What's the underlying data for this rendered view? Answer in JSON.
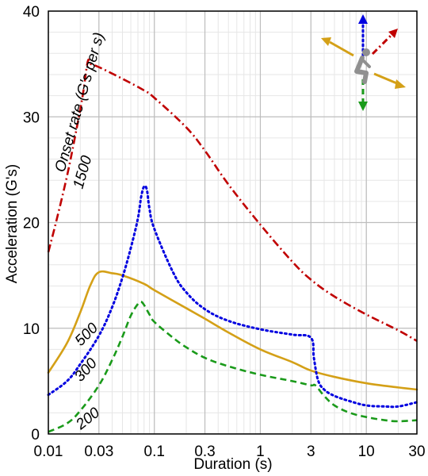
{
  "chart_data": {
    "type": "line",
    "title": "",
    "xlabel": "Duration (s)",
    "ylabel": "Acceleration (G's)",
    "xscale": "log",
    "xlim": [
      0.01,
      30
    ],
    "ylim": [
      0,
      40
    ],
    "x_ticks": [
      0.01,
      0.03,
      0.1,
      0.3,
      1,
      3,
      10,
      30
    ],
    "x_tick_labels": [
      "0.01",
      "0.03",
      "0.1",
      "0.3",
      "1",
      "3",
      "10",
      "30"
    ],
    "y_ticks": [
      0,
      10,
      20,
      30,
      40
    ],
    "y_tick_labels": [
      "0",
      "10",
      "20",
      "30",
      "40"
    ],
    "grid": true,
    "series_label_header": "Onset rate (G's per s)",
    "series": [
      {
        "name": "1500",
        "color": "#c00000",
        "style": "dash-dot",
        "x": [
          0.01,
          0.012,
          0.015,
          0.018,
          0.021,
          0.0235,
          0.025,
          0.03,
          0.05,
          0.08,
          0.1,
          0.2,
          0.3,
          0.5,
          1,
          2,
          3,
          5,
          10,
          20,
          30
        ],
        "y": [
          17.2,
          20.3,
          24.4,
          28.3,
          31.9,
          35.2,
          35.0,
          34.7,
          33.6,
          32.5,
          31.8,
          29.0,
          26.8,
          23.6,
          19.8,
          16.3,
          14.6,
          13.0,
          11.3,
          9.8,
          8.8
        ]
      },
      {
        "name": "500",
        "color": "#d4a017",
        "style": "solid",
        "x": [
          0.01,
          0.015,
          0.02,
          0.025,
          0.03,
          0.04,
          0.05,
          0.08,
          0.1,
          0.2,
          0.3,
          0.5,
          1,
          2,
          3,
          5,
          10,
          20,
          30
        ],
        "y": [
          5.8,
          8.6,
          11.5,
          14.1,
          15.3,
          15.2,
          15.0,
          14.2,
          13.6,
          11.9,
          10.9,
          9.6,
          8.0,
          6.8,
          6.0,
          5.4,
          4.8,
          4.4,
          4.2
        ]
      },
      {
        "name": "300",
        "color": "#0000e0",
        "style": "dotted",
        "x": [
          0.01,
          0.015,
          0.02,
          0.03,
          0.04,
          0.05,
          0.06,
          0.07,
          0.075,
          0.08,
          0.085,
          0.09,
          0.1,
          0.15,
          0.2,
          0.3,
          0.5,
          1,
          2,
          3,
          3.2,
          3.5,
          4,
          5,
          7,
          10,
          15,
          20,
          30
        ],
        "y": [
          3.7,
          5.0,
          6.6,
          9.3,
          12.0,
          14.8,
          17.6,
          20.4,
          22.4,
          23.4,
          23.1,
          21.3,
          19.4,
          15.3,
          13.4,
          11.8,
          10.7,
          9.9,
          9.4,
          9.1,
          7.2,
          5.1,
          4.2,
          3.6,
          3.1,
          2.7,
          2.6,
          2.6,
          3.0
        ]
      },
      {
        "name": "200",
        "color": "#1a9a1a",
        "style": "dashed",
        "x": [
          0.01,
          0.015,
          0.02,
          0.03,
          0.04,
          0.05,
          0.06,
          0.07,
          0.075,
          0.08,
          0.09,
          0.1,
          0.15,
          0.2,
          0.3,
          0.5,
          1,
          2,
          3,
          3.3,
          4,
          5,
          7,
          10,
          15,
          20,
          30
        ],
        "y": [
          0.2,
          1.0,
          2.2,
          4.6,
          7.0,
          9.2,
          11.2,
          12.3,
          12.5,
          12.2,
          11.3,
          10.6,
          9.1,
          8.2,
          7.2,
          6.4,
          5.6,
          5.0,
          4.6,
          4.6,
          3.6,
          2.7,
          2.0,
          1.6,
          1.3,
          1.2,
          1.3
        ]
      }
    ],
    "inset_icon": "seated-human-acceleration-axes-icon"
  }
}
